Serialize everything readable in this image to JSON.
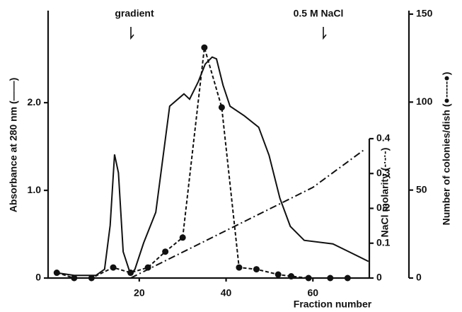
{
  "chart_data": {
    "type": "multi-axis-line",
    "x_label": "Fraction number",
    "y_label": "Absorbance at 280 nm (——)",
    "y2_label": "Number of colonies/dish (●-----●)",
    "y3_label": "NaCl molarity (-·-·-)",
    "annotations": [
      "gradient",
      "0.5 M NaCl"
    ],
    "xlim": [
      -1,
      73
    ],
    "xticks": [
      20,
      40,
      60
    ],
    "ylim": [
      0,
      3.05
    ],
    "yticks": [
      0,
      {
        "value": 1,
        "label": "1.0"
      },
      {
        "value": 2,
        "label": "2.0"
      }
    ],
    "y2lim": [
      0,
      152
    ],
    "y2ticks": [
      0,
      50,
      100,
      150
    ],
    "y3lim": [
      0,
      0.4
    ],
    "y3ticks": [
      0,
      0.1,
      0.2,
      0.3,
      0.4
    ],
    "series": [
      {
        "name": "Absorbance at 280 nm",
        "color": "#111111",
        "style": "solid",
        "axis": "y",
        "x": [
          1,
          5,
          10,
          12,
          13.3,
          14.3,
          15.2,
          16.3,
          18,
          19,
          21,
          23.8,
          27,
          30.3,
          31.6,
          33.6,
          35.2,
          36.8,
          37.8,
          39.3,
          40.9,
          44.2,
          47.5,
          49.9,
          52.4,
          54.8,
          58,
          64.6,
          67.9,
          72.8
        ],
        "values": [
          0.06,
          0.03,
          0.03,
          0.1,
          0.6,
          1.41,
          1.2,
          0.3,
          0.04,
          0.1,
          0.4,
          0.75,
          1.96,
          2.1,
          2.04,
          2.24,
          2.44,
          2.52,
          2.5,
          2.2,
          1.96,
          1.85,
          1.72,
          1.4,
          0.91,
          0.59,
          0.43,
          0.39,
          0.31,
          0.19
        ]
      },
      {
        "name": "Number of colonies/dish",
        "color": "#111111",
        "style": "dashed-dots",
        "axis": "y2",
        "x": [
          1,
          5,
          9,
          14,
          18,
          22,
          26,
          30,
          35,
          39,
          43,
          47,
          52,
          55,
          59,
          64,
          68
        ],
        "values": [
          3,
          0,
          0,
          6,
          3,
          6,
          15,
          23,
          131,
          97,
          6,
          5,
          2,
          1,
          0,
          0,
          0
        ]
      },
      {
        "name": "NaCl molarity",
        "color": "#111111",
        "style": "dash-dot",
        "axis": "y3",
        "x": [
          18,
          60,
          72
        ],
        "values": [
          0,
          0.26,
          0.37
        ]
      }
    ]
  }
}
